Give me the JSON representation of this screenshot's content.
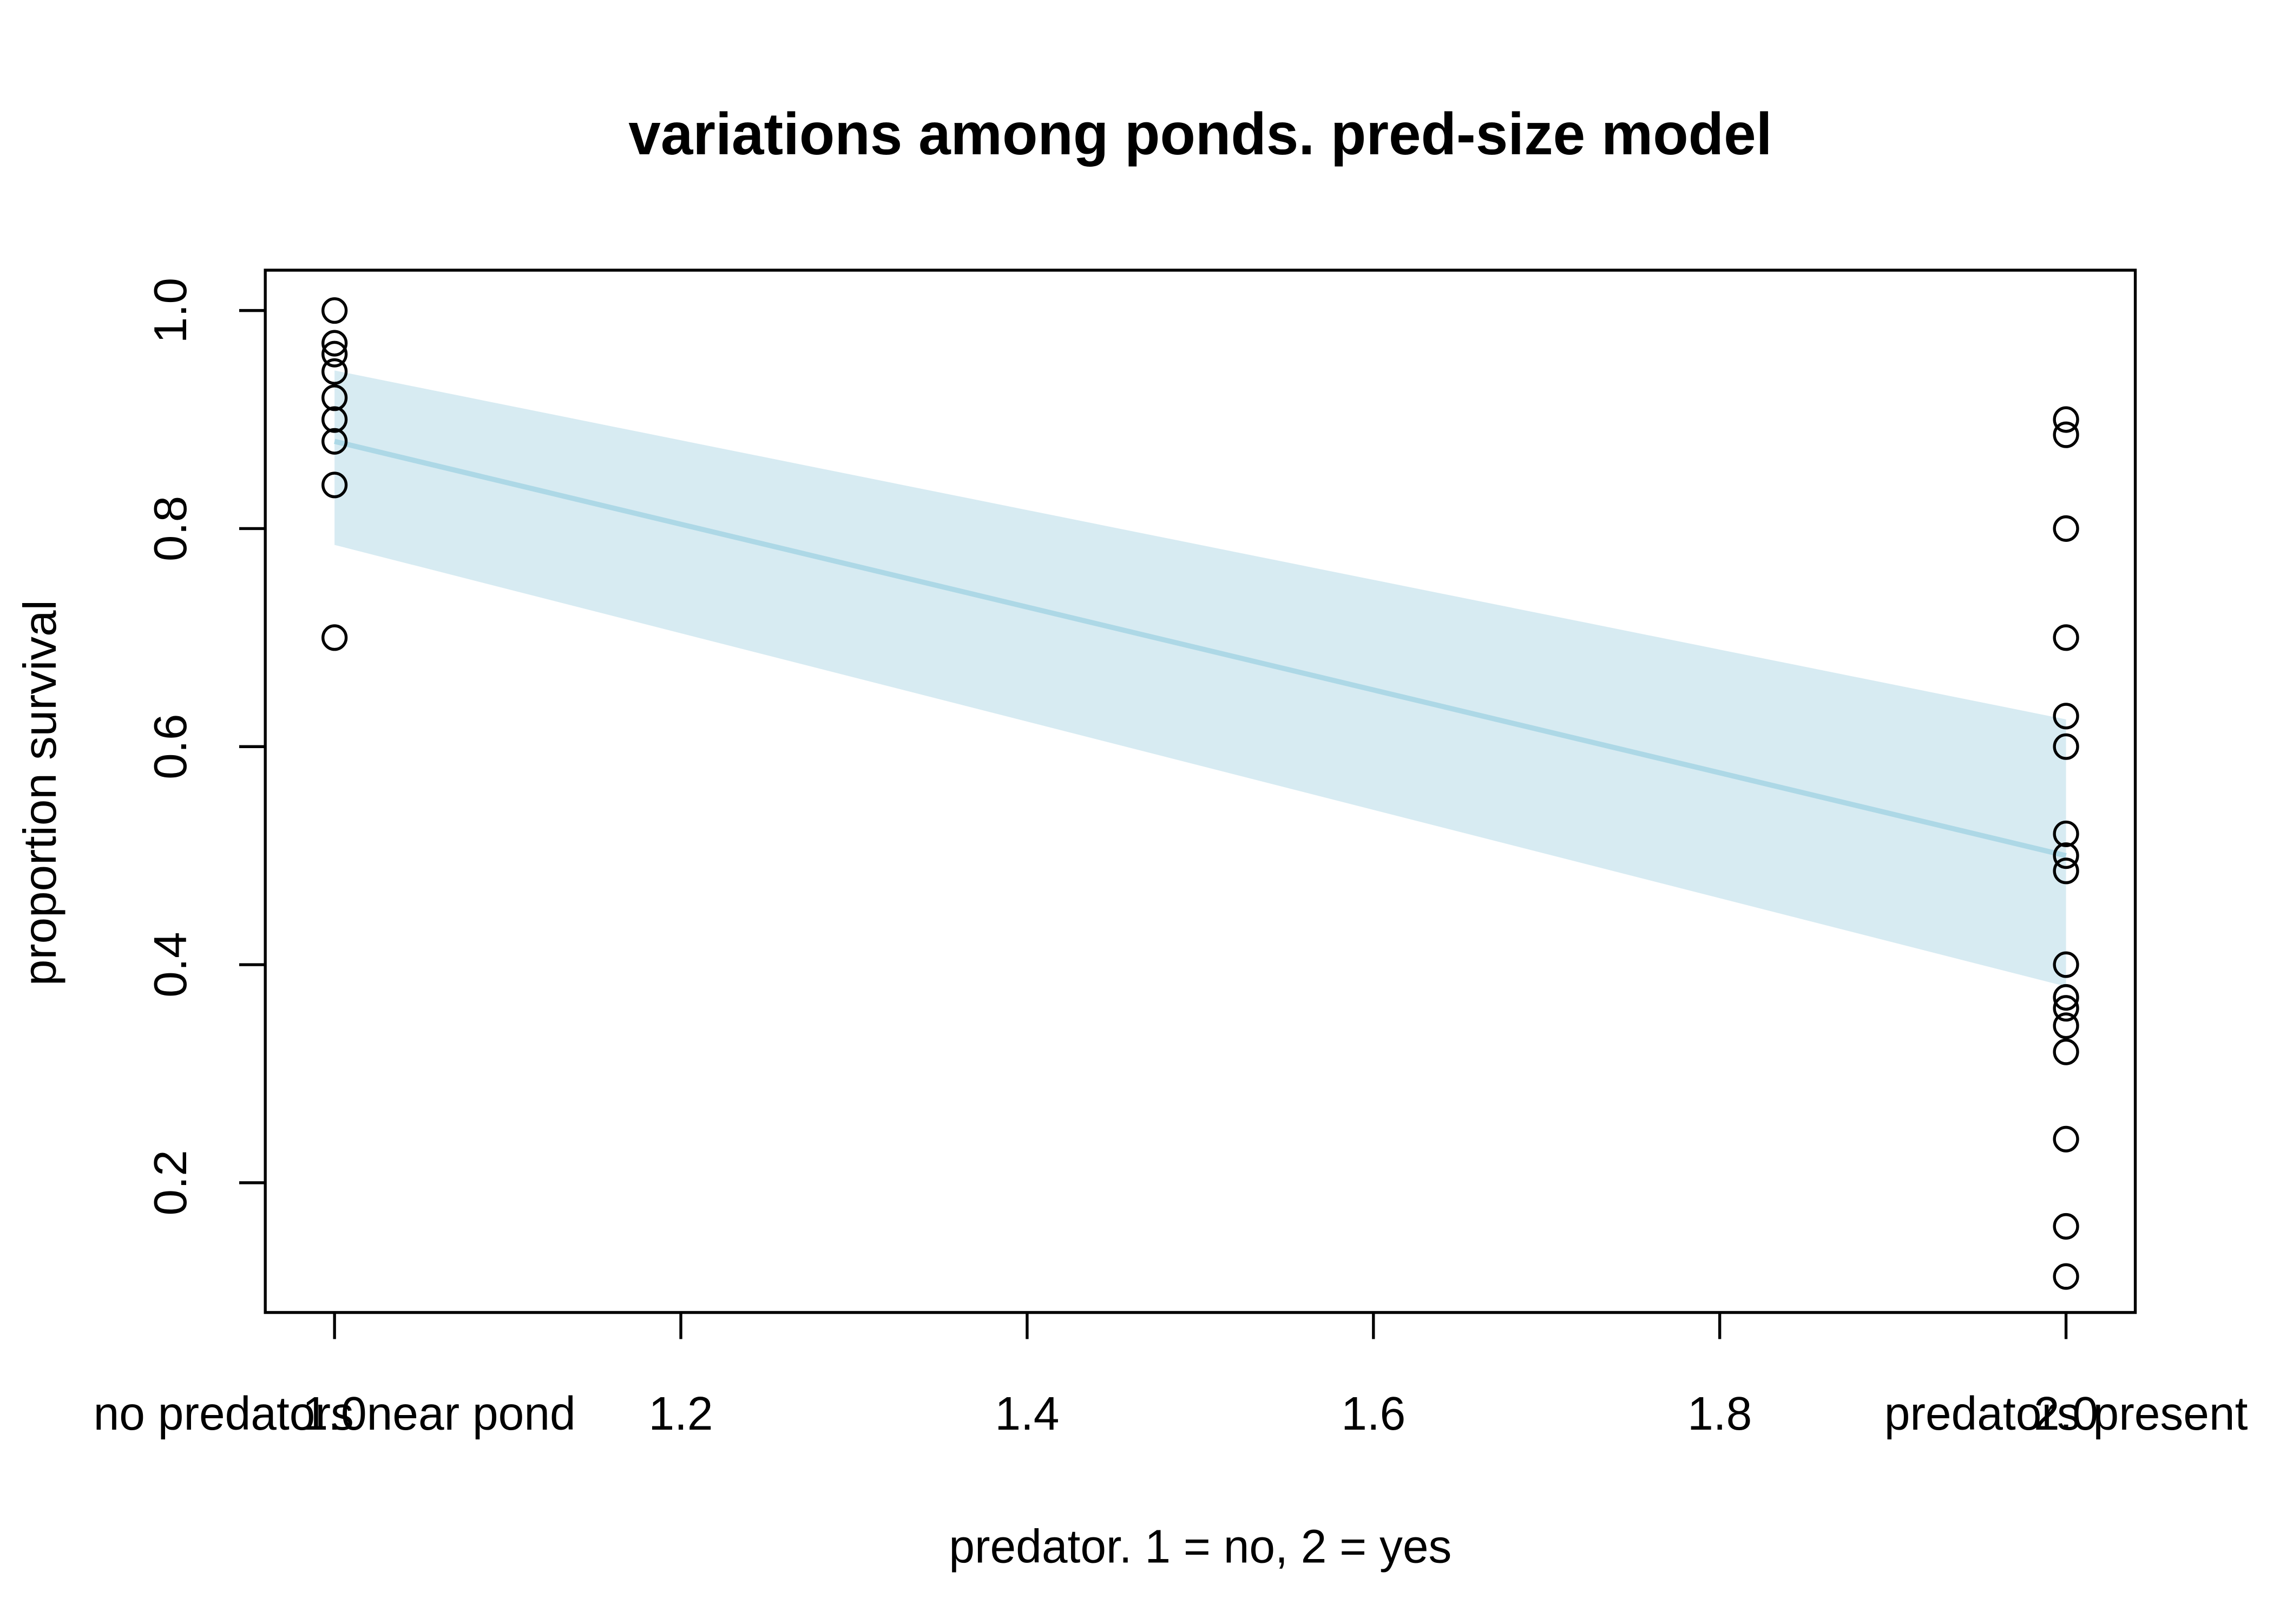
{
  "chart_data": {
    "type": "scatter",
    "title": "variations among ponds. pred-size model",
    "x_label": "predator. 1 = no, 2 = yes",
    "y_label": "proportion survival",
    "xlim": [
      0.96,
      2.04
    ],
    "ylim": [
      0.081,
      1.037
    ],
    "xticks": [
      {
        "value": 1,
        "label": "1.0"
      },
      1.2,
      1.4,
      1.6,
      1.8,
      {
        "value": 2,
        "label": "2.0"
      }
    ],
    "yticks": [
      0.2,
      0.4,
      0.6,
      0.8,
      {
        "value": 1,
        "label": "1.0"
      }
    ],
    "annotations": [
      {
        "text": "no predators near pond",
        "x": 1
      },
      {
        "text": "predators present",
        "x": 2
      }
    ],
    "series": [
      {
        "type": "band",
        "color": "#d7ebf2",
        "x": [
          1,
          2
        ],
        "lower": [
          0.785,
          0.38
        ],
        "upper": [
          0.945,
          0.625
        ]
      },
      {
        "type": "line",
        "color": "#add8e6",
        "x": [
          1,
          2
        ],
        "values": [
          0.88,
          0.5
        ]
      },
      {
        "type": "scatter",
        "color": "#000000",
        "x": [
          1,
          1,
          1,
          1,
          1,
          1,
          1,
          1,
          1,
          2,
          2,
          2,
          2,
          2,
          2,
          2,
          2,
          2,
          2,
          2,
          2,
          2,
          2,
          2,
          2,
          2
        ],
        "values": [
          1.0,
          0.97,
          0.96,
          0.944,
          0.92,
          0.9,
          0.88,
          0.84,
          0.7,
          0.9,
          0.886,
          0.8,
          0.7,
          0.628,
          0.6,
          0.52,
          0.5,
          0.486,
          0.4,
          0.37,
          0.36,
          0.344,
          0.32,
          0.24,
          0.16,
          0.114
        ]
      }
    ]
  }
}
